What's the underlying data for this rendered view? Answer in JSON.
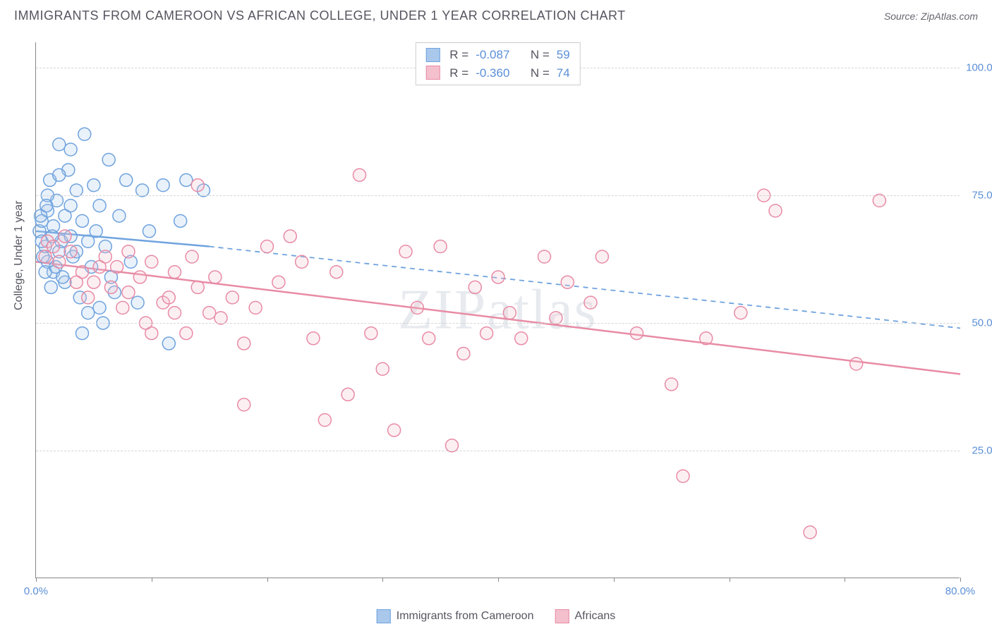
{
  "header": {
    "title": "IMMIGRANTS FROM CAMEROON VS AFRICAN COLLEGE, UNDER 1 YEAR CORRELATION CHART",
    "source_prefix": "Source: ",
    "source_name": "ZipAtlas.com"
  },
  "watermark": "ZIPatlas",
  "y_axis_label": "College, Under 1 year",
  "chart": {
    "type": "scatter",
    "xlim": [
      0,
      80
    ],
    "ylim": [
      0,
      105
    ],
    "x_ticks": [
      0,
      10,
      20,
      30,
      40,
      50,
      60,
      70,
      80
    ],
    "x_tick_labels": {
      "0": "0.0%",
      "80": "80.0%"
    },
    "y_gridlines": [
      25,
      50,
      75,
      100
    ],
    "y_tick_labels": {
      "25": "25.0%",
      "50": "50.0%",
      "75": "75.0%",
      "100": "100.0%"
    },
    "background_color": "#ffffff",
    "grid_color": "#d5d5d5",
    "axis_color": "#888888",
    "tick_label_color": "#5b8fd6",
    "marker_radius": 9,
    "marker_stroke_width": 1.5,
    "marker_fill_opacity": 0.25,
    "trendline_width": 2.5
  },
  "series": [
    {
      "key": "cameroon",
      "label": "Immigrants from Cameroon",
      "color_fill": "#a9c8ec",
      "color_stroke": "#6fa3de",
      "R": "-0.087",
      "N": "59",
      "trendline": {
        "x1": 0,
        "y1": 68,
        "x2": 15,
        "y2": 65,
        "dash_x2": 80,
        "dash_y2": 49
      },
      "points": [
        [
          0.3,
          68
        ],
        [
          0.5,
          70
        ],
        [
          0.8,
          65
        ],
        [
          1.0,
          72
        ],
        [
          1.2,
          78
        ],
        [
          1.5,
          60
        ],
        [
          1.8,
          74
        ],
        [
          2.0,
          85
        ],
        [
          2.2,
          66
        ],
        [
          2.5,
          58
        ],
        [
          2.8,
          80
        ],
        [
          3.0,
          84
        ],
        [
          3.2,
          63
        ],
        [
          3.5,
          76
        ],
        [
          3.8,
          55
        ],
        [
          4.0,
          70
        ],
        [
          4.2,
          87
        ],
        [
          4.5,
          52
        ],
        [
          4.8,
          61
        ],
        [
          5.0,
          77
        ],
        [
          5.2,
          68
        ],
        [
          5.5,
          73
        ],
        [
          5.8,
          50
        ],
        [
          6.0,
          65
        ],
        [
          6.3,
          82
        ],
        [
          6.8,
          56
        ],
        [
          7.2,
          71
        ],
        [
          7.8,
          78
        ],
        [
          8.2,
          62
        ],
        [
          8.8,
          54
        ],
        [
          9.2,
          76
        ],
        [
          9.8,
          68
        ],
        [
          4.0,
          48
        ],
        [
          5.5,
          53
        ],
        [
          6.5,
          59
        ],
        [
          3.0,
          67
        ],
        [
          2.0,
          64
        ],
        [
          1.0,
          62
        ],
        [
          0.5,
          66
        ],
        [
          1.5,
          69
        ],
        [
          2.5,
          71
        ],
        [
          3.5,
          64
        ],
        [
          4.5,
          66
        ],
        [
          11.0,
          77
        ],
        [
          12.5,
          70
        ],
        [
          13.0,
          78
        ],
        [
          14.5,
          76
        ],
        [
          11.5,
          46
        ],
        [
          1.0,
          75
        ],
        [
          2.0,
          79
        ],
        [
          3.0,
          73
        ],
        [
          0.8,
          60
        ],
        [
          1.3,
          57
        ],
        [
          0.6,
          63
        ],
        [
          1.7,
          61
        ],
        [
          2.3,
          59
        ],
        [
          0.4,
          71
        ],
        [
          0.9,
          73
        ],
        [
          1.4,
          67
        ]
      ]
    },
    {
      "key": "africans",
      "label": "Africans",
      "color_fill": "#f4c0cd",
      "color_stroke": "#e88ba5",
      "R": "-0.360",
      "N": "74",
      "trendline": {
        "x1": 0,
        "y1": 62,
        "x2": 80,
        "y2": 40
      },
      "points": [
        [
          1.0,
          66
        ],
        [
          2.0,
          62
        ],
        [
          3.0,
          64
        ],
        [
          4.0,
          60
        ],
        [
          5.0,
          58
        ],
        [
          6.0,
          63
        ],
        [
          7.0,
          61
        ],
        [
          8.0,
          56
        ],
        [
          9.0,
          59
        ],
        [
          10.0,
          62
        ],
        [
          11.0,
          54
        ],
        [
          12.0,
          60
        ],
        [
          13.0,
          48
        ],
        [
          14.0,
          57
        ],
        [
          15.0,
          52
        ],
        [
          16.0,
          51
        ],
        [
          17.0,
          55
        ],
        [
          18.0,
          46
        ],
        [
          19.0,
          53
        ],
        [
          20.0,
          65
        ],
        [
          21.0,
          58
        ],
        [
          22.0,
          67
        ],
        [
          23.0,
          62
        ],
        [
          24.0,
          47
        ],
        [
          25.0,
          31
        ],
        [
          26.0,
          60
        ],
        [
          27.0,
          36
        ],
        [
          28.0,
          79
        ],
        [
          29.0,
          48
        ],
        [
          30.0,
          41
        ],
        [
          31.0,
          29
        ],
        [
          32.0,
          64
        ],
        [
          33.0,
          53
        ],
        [
          34.0,
          47
        ],
        [
          35.0,
          65
        ],
        [
          36.0,
          26
        ],
        [
          37.0,
          44
        ],
        [
          38.0,
          57
        ],
        [
          39.0,
          48
        ],
        [
          40.0,
          59
        ],
        [
          41.0,
          52
        ],
        [
          42.0,
          47
        ],
        [
          44.0,
          63
        ],
        [
          45.0,
          51
        ],
        [
          46.0,
          58
        ],
        [
          48.0,
          54
        ],
        [
          49.0,
          63
        ],
        [
          52.0,
          48
        ],
        [
          55.0,
          38
        ],
        [
          56.0,
          20
        ],
        [
          58.0,
          47
        ],
        [
          61.0,
          52
        ],
        [
          63.0,
          75
        ],
        [
          64.0,
          72
        ],
        [
          67.0,
          9
        ],
        [
          71.0,
          42
        ],
        [
          73.0,
          74
        ],
        [
          14.0,
          77
        ],
        [
          18.0,
          34
        ],
        [
          10.0,
          48
        ],
        [
          12.0,
          52
        ],
        [
          8.0,
          64
        ],
        [
          6.5,
          57
        ],
        [
          4.5,
          55
        ],
        [
          2.5,
          67
        ],
        [
          1.5,
          65
        ],
        [
          0.8,
          63
        ],
        [
          3.5,
          58
        ],
        [
          5.5,
          61
        ],
        [
          7.5,
          53
        ],
        [
          9.5,
          50
        ],
        [
          11.5,
          55
        ],
        [
          13.5,
          63
        ],
        [
          15.5,
          59
        ]
      ]
    }
  ],
  "stats_box": {
    "R_label": "R =",
    "N_label": "N ="
  },
  "legend": {
    "items": [
      "cameroon",
      "africans"
    ]
  }
}
